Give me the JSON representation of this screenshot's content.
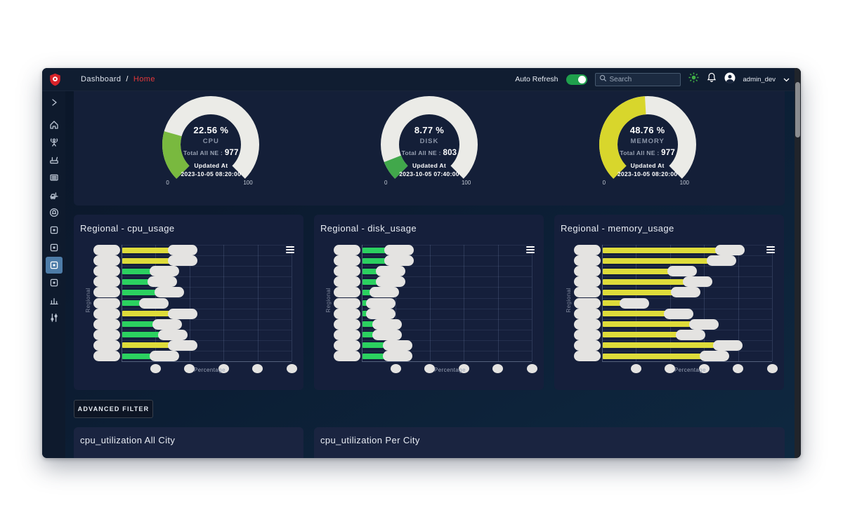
{
  "navbar": {
    "breadcrumb": {
      "section": "Dashboard",
      "separator": "/",
      "current": "Home"
    },
    "auto_refresh": {
      "label": "Auto Refresh",
      "state": "on"
    },
    "search": {
      "placeholder": "Search"
    },
    "user": {
      "name": "admin_dev"
    }
  },
  "sidebar": {
    "icons": [
      "chevron-right",
      "home",
      "antenna-user",
      "router",
      "server",
      "forklift",
      "alarm",
      "widget",
      "widget",
      "widget",
      "widget",
      "bar-chart",
      "sliders"
    ],
    "active_index": 9
  },
  "gauges": [
    {
      "percent": 22.56,
      "display": "22.56 %",
      "metric": "CPU",
      "total_label": "Total All NE :",
      "total": "977",
      "updated_label": "Updated At",
      "updated": "2023-10-05 08:20:00",
      "min_label": "0",
      "max_label": "100",
      "color": "#79b93f"
    },
    {
      "percent": 8.77,
      "display": "8.77 %",
      "metric": "DISK",
      "total_label": "Total All NE :",
      "total": "803",
      "updated_label": "Updated At",
      "updated": "2023-10-05 07:40:00",
      "min_label": "0",
      "max_label": "100",
      "color": "#41a84b"
    },
    {
      "percent": 48.76,
      "display": "48.76 %",
      "metric": "MEMORY",
      "total_label": "Total All NE :",
      "total": "977",
      "updated_label": "Updated At",
      "updated": "2023-10-05 08:20:00",
      "min_label": "0",
      "max_label": "100",
      "color": "#d8d62c"
    }
  ],
  "filters": {
    "advanced_filter_label": "ADVANCED FILTER"
  },
  "bottom_panels": [
    {
      "title": "cpu_utilization All City"
    },
    {
      "title": "cpu_utilization Per City"
    }
  ],
  "colors": {
    "bar_yellow": "#dedc3a",
    "bar_green": "#2bd160",
    "gauge_track": "#ebebe7",
    "redaction_blob": "#e4e3e1",
    "accent_red": "#e5383b",
    "toggle_green": "#1fa04c",
    "active_sidebar": "#4d7ca8"
  },
  "chart_data": [
    {
      "type": "bar",
      "title": "Regional - cpu_usage",
      "xlabel": "Percentage",
      "ylabel": "Regional",
      "xlim": [
        0,
        100
      ],
      "grid": true,
      "category_labels_redacted": true,
      "value_labels_redacted": true,
      "tick_labels_redacted": true,
      "bars": [
        {
          "value": 29,
          "color": "yellow"
        },
        {
          "value": 29,
          "color": "yellow"
        },
        {
          "value": 18,
          "color": "green"
        },
        {
          "value": 17,
          "color": "green"
        },
        {
          "value": 21,
          "color": "green"
        },
        {
          "value": 12,
          "color": "green"
        },
        {
          "value": 29,
          "color": "yellow"
        },
        {
          "value": 20,
          "color": "green"
        },
        {
          "value": 23,
          "color": "green"
        },
        {
          "value": 29,
          "color": "yellow"
        },
        {
          "value": 18,
          "color": "green"
        }
      ]
    },
    {
      "type": "bar",
      "title": "Regional - disk_usage",
      "xlabel": "Percentage",
      "ylabel": "Regional",
      "xlim": [
        0,
        100
      ],
      "grid": true,
      "category_labels_redacted": true,
      "value_labels_redacted": true,
      "tick_labels_redacted": true,
      "bars": [
        {
          "value": 15,
          "color": "green"
        },
        {
          "value": 15,
          "color": "green"
        },
        {
          "value": 10,
          "color": "green"
        },
        {
          "value": 10,
          "color": "green"
        },
        {
          "value": 6,
          "color": "green"
        },
        {
          "value": 4,
          "color": "green"
        },
        {
          "value": 4,
          "color": "green"
        },
        {
          "value": 8,
          "color": "green"
        },
        {
          "value": 8,
          "color": "green"
        },
        {
          "value": 14,
          "color": "green"
        },
        {
          "value": 14,
          "color": "green"
        }
      ]
    },
    {
      "type": "bar",
      "title": "Regional - memory_usage",
      "xlabel": "Percentage",
      "ylabel": "Regional",
      "xlim": [
        0,
        100
      ],
      "grid": true,
      "category_labels_redacted": true,
      "value_labels_redacted": true,
      "tick_labels_redacted": true,
      "bars": [
        {
          "value": 68,
          "color": "yellow"
        },
        {
          "value": 63,
          "color": "yellow"
        },
        {
          "value": 40,
          "color": "yellow"
        },
        {
          "value": 49,
          "color": "yellow"
        },
        {
          "value": 42,
          "color": "yellow"
        },
        {
          "value": 12,
          "color": "yellow"
        },
        {
          "value": 38,
          "color": "yellow"
        },
        {
          "value": 53,
          "color": "yellow"
        },
        {
          "value": 45,
          "color": "yellow"
        },
        {
          "value": 67,
          "color": "yellow"
        },
        {
          "value": 59,
          "color": "yellow"
        }
      ]
    }
  ]
}
